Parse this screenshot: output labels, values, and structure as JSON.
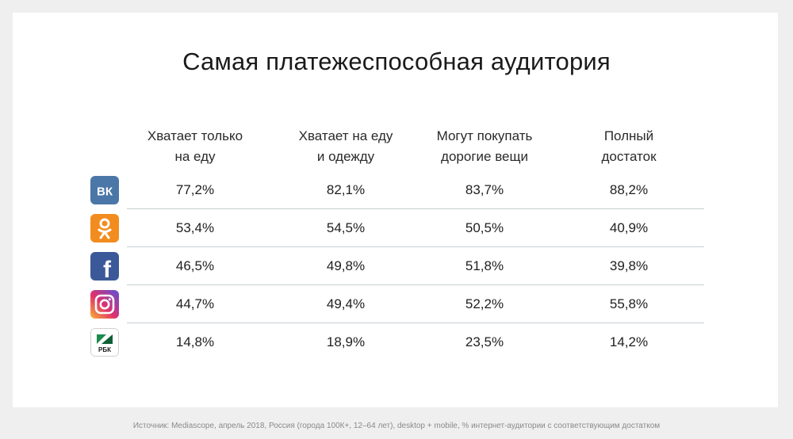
{
  "title": "Самая платежеспособная аудитория",
  "footer": "Источник: Mediascope, апрель 2018, Россия (города 100К+, 12–64 лет), desktop + mobile, % интернет-аудитории с соответствующим достатком",
  "chart_data": {
    "type": "table",
    "title": "Самая платежеспособная аудитория",
    "columns": [
      "Хватает только\nна еду",
      "Хватает на еду\nи одежду",
      "Могут покупать\nдорогие вещи",
      "Полный\nдостаток"
    ],
    "rows": [
      {
        "icon": "vk-icon",
        "label": "ВК",
        "color": "#4a76a8",
        "values": [
          "77,2%",
          "82,1%",
          "83,7%",
          "88,2%"
        ]
      },
      {
        "icon": "odnoklassniki-icon",
        "label": "ОК",
        "color": "#f28c1e",
        "values": [
          "53,4%",
          "54,5%",
          "50,5%",
          "40,9%"
        ]
      },
      {
        "icon": "facebook-icon",
        "label": "f",
        "color": "#3b5998",
        "values": [
          "46,5%",
          "49,8%",
          "51,8%",
          "39,8%"
        ]
      },
      {
        "icon": "instagram-icon",
        "label": "",
        "color": "#c13584",
        "values": [
          "44,7%",
          "49,4%",
          "52,2%",
          "55,8%"
        ]
      },
      {
        "icon": "rbc-icon",
        "label": "РБК",
        "color": "#1d8a4e",
        "values": [
          "14,8%",
          "18,9%",
          "23,5%",
          "14,2%"
        ]
      }
    ]
  }
}
